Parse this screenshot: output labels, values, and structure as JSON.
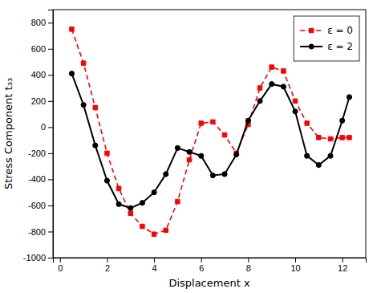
{
  "chart_data": {
    "type": "line",
    "x_label": "Displacement x",
    "y_label": "Stress Component t₃₃",
    "x": [
      0.5,
      1.0,
      1.5,
      2.0,
      2.5,
      3.0,
      3.5,
      4.0,
      4.5,
      5.0,
      5.5,
      6.0,
      6.5,
      7.0,
      7.5,
      8.0,
      8.5,
      9.0,
      9.5,
      10.0,
      10.5,
      11.0,
      11.5,
      12.0,
      12.3
    ],
    "series": [
      {
        "name": "ε = 0",
        "color": "red",
        "line_style": "dashed",
        "marker": "square",
        "values": [
          750,
          490,
          150,
          -200,
          -470,
          -660,
          -760,
          -820,
          -790,
          -570,
          -250,
          30,
          40,
          -60,
          -200,
          20,
          300,
          460,
          430,
          200,
          30,
          -80,
          -90,
          -80,
          -80
        ]
      },
      {
        "name": "ε = 2",
        "color": "black",
        "line_style": "solid",
        "marker": "circle",
        "values": [
          410,
          170,
          -140,
          -410,
          -590,
          -620,
          -580,
          -500,
          -360,
          -160,
          -190,
          -220,
          -370,
          -360,
          -210,
          50,
          200,
          330,
          310,
          120,
          -220,
          -290,
          -220,
          50,
          230
        ]
      }
    ],
    "xlim": [
      -0.3,
      13.0
    ],
    "ylim": [
      -1000,
      900
    ],
    "xticks": [
      0,
      2,
      4,
      6,
      8,
      10,
      12
    ],
    "yticks": [
      -1000,
      -800,
      -600,
      -400,
      -200,
      0,
      200,
      400,
      600,
      800
    ],
    "grid": false,
    "legend": "upper right"
  }
}
